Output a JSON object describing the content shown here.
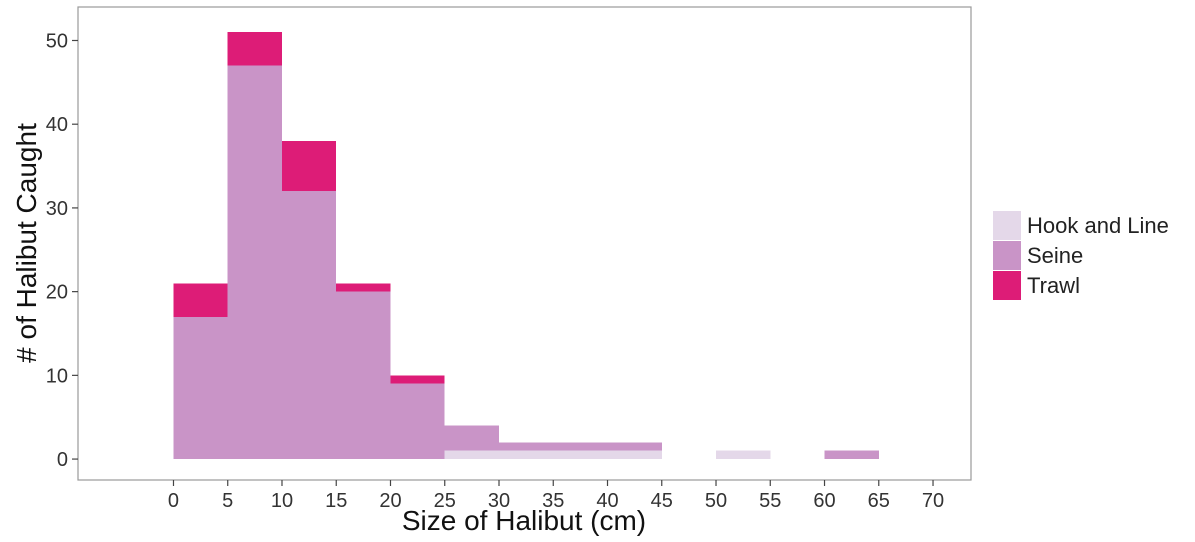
{
  "chart_data": {
    "type": "bar",
    "subtype": "stacked-histogram",
    "xlabel": "Size of Halibut (cm)",
    "ylabel": "# of Halibut Caught",
    "x_ticks": [
      0,
      5,
      10,
      15,
      20,
      25,
      30,
      35,
      40,
      45,
      50,
      55,
      60,
      65,
      70
    ],
    "y_ticks": [
      0,
      10,
      20,
      30,
      40,
      50
    ],
    "xlim": [
      -8.8,
      73.5
    ],
    "ylim": [
      -2.5,
      54
    ],
    "grid": false,
    "legend_position": "right",
    "bins": [
      [
        0,
        5
      ],
      [
        5,
        10
      ],
      [
        10,
        15
      ],
      [
        15,
        20
      ],
      [
        20,
        25
      ],
      [
        25,
        30
      ],
      [
        30,
        35
      ],
      [
        35,
        40
      ],
      [
        40,
        45
      ],
      [
        45,
        50
      ],
      [
        50,
        55
      ],
      [
        55,
        60
      ],
      [
        60,
        65
      ]
    ],
    "series": [
      {
        "name": "Hook and Line",
        "color": "#e4d8e9",
        "values": [
          0,
          0,
          0,
          0,
          0,
          1,
          1,
          1,
          1,
          0,
          1,
          0,
          0
        ]
      },
      {
        "name": "Seine",
        "color": "#c994c7",
        "values": [
          17,
          47,
          32,
          20,
          9,
          3,
          1,
          1,
          1,
          0,
          0,
          0,
          1
        ]
      },
      {
        "name": "Trawl",
        "color": "#dd1c77",
        "values": [
          4,
          4,
          6,
          1,
          1,
          0,
          0,
          0,
          0,
          0,
          0,
          0,
          0
        ]
      }
    ]
  }
}
